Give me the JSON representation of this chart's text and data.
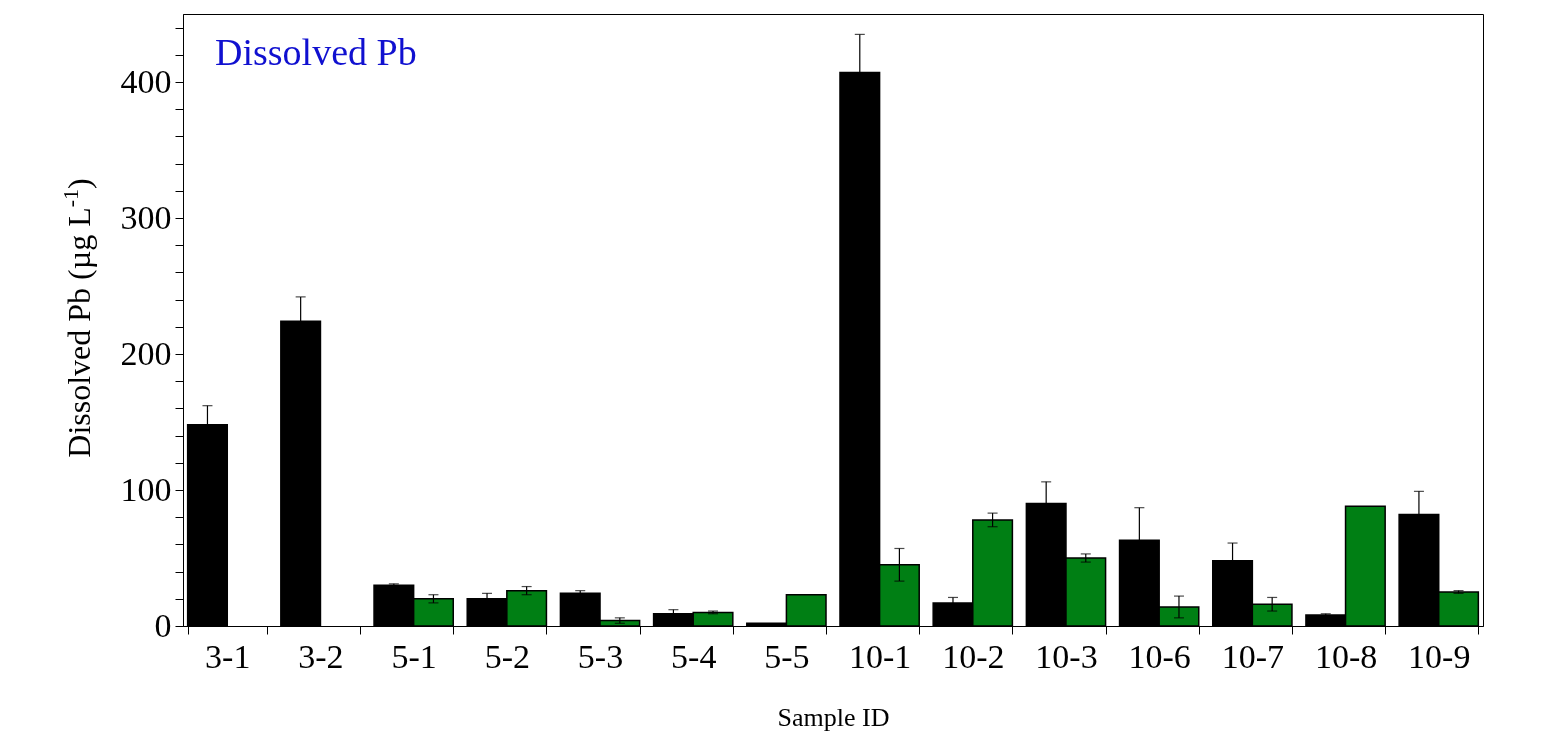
{
  "chart_data": {
    "type": "bar",
    "title": "Dissolved Pb",
    "xlabel": "Sample ID",
    "ylabel": "Dissolved Pb (µg L$^{-1}$)",
    "categories": [
      "3-1",
      "3-2",
      "5-1",
      "5-2",
      "5-3",
      "5-4",
      "5-5",
      "10-1",
      "10-2",
      "10-3",
      "10-6",
      "10-7",
      "10-8",
      "10-9"
    ],
    "series": [
      {
        "color": "#000000",
        "values": [
          148,
          224,
          30,
          20,
          24,
          9,
          2,
          407,
          17,
          90,
          63,
          48,
          8,
          82
        ],
        "errors": [
          14,
          18,
          1,
          4,
          2,
          3,
          null,
          28,
          4,
          16,
          24,
          13,
          1,
          17
        ]
      },
      {
        "color": "#007f14",
        "values": [
          null,
          null,
          20,
          26,
          4,
          10,
          23,
          45,
          78,
          50,
          14,
          16,
          88,
          25
        ],
        "errors": [
          null,
          null,
          3,
          3,
          2,
          1,
          null,
          12,
          5,
          3,
          8,
          5,
          null,
          1
        ]
      }
    ],
    "ylim": [
      0,
      450
    ],
    "yticks": [
      0,
      {
        "value": 20,
        "label": null
      },
      {
        "value": 40,
        "label": null
      },
      {
        "value": 60,
        "label": null
      },
      {
        "value": 80,
        "label": null
      },
      100,
      {
        "value": 120,
        "label": null
      },
      {
        "value": 140,
        "label": null
      },
      {
        "value": 160,
        "label": null
      },
      {
        "value": 180,
        "label": null
      },
      200,
      {
        "value": 220,
        "label": null
      },
      {
        "value": 240,
        "label": null
      },
      {
        "value": 260,
        "label": null
      },
      {
        "value": 280,
        "label": null
      },
      300,
      {
        "value": 320,
        "label": null
      },
      {
        "value": 340,
        "label": null
      },
      {
        "value": 360,
        "label": null
      },
      {
        "value": 380,
        "label": null
      },
      400,
      {
        "value": 420,
        "label": null
      },
      {
        "value": 440,
        "label": null
      }
    ],
    "grid": false,
    "legend": false
  }
}
